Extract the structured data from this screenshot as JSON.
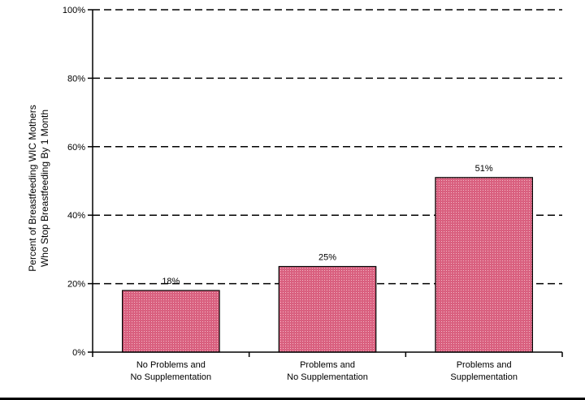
{
  "chart_data": {
    "type": "bar",
    "title": "",
    "categories": [
      [
        "No Problems and",
        "No Supplementation"
      ],
      [
        "Problems and",
        "No Supplementation"
      ],
      [
        "Problems and",
        "Supplementation"
      ]
    ],
    "values": [
      18,
      25,
      51
    ],
    "data_labels": [
      "18%",
      "25%",
      "51%"
    ],
    "ylabel": [
      "Percent of Breastfeeding WIC Mothers",
      "Who Stop Breastfeeding By 1 Month"
    ],
    "xlabel": "",
    "ylim": [
      0,
      100
    ],
    "yticks": [
      0,
      20,
      40,
      60,
      80,
      100
    ],
    "ytick_labels": [
      "0%",
      "20%",
      "40%",
      "60%",
      "80%",
      "100%"
    ],
    "grid": "dashed horizontal",
    "legend": "none",
    "colors": {
      "bar": "#d9607f",
      "bar_stroke": "#000000",
      "grid": "#000000"
    }
  }
}
